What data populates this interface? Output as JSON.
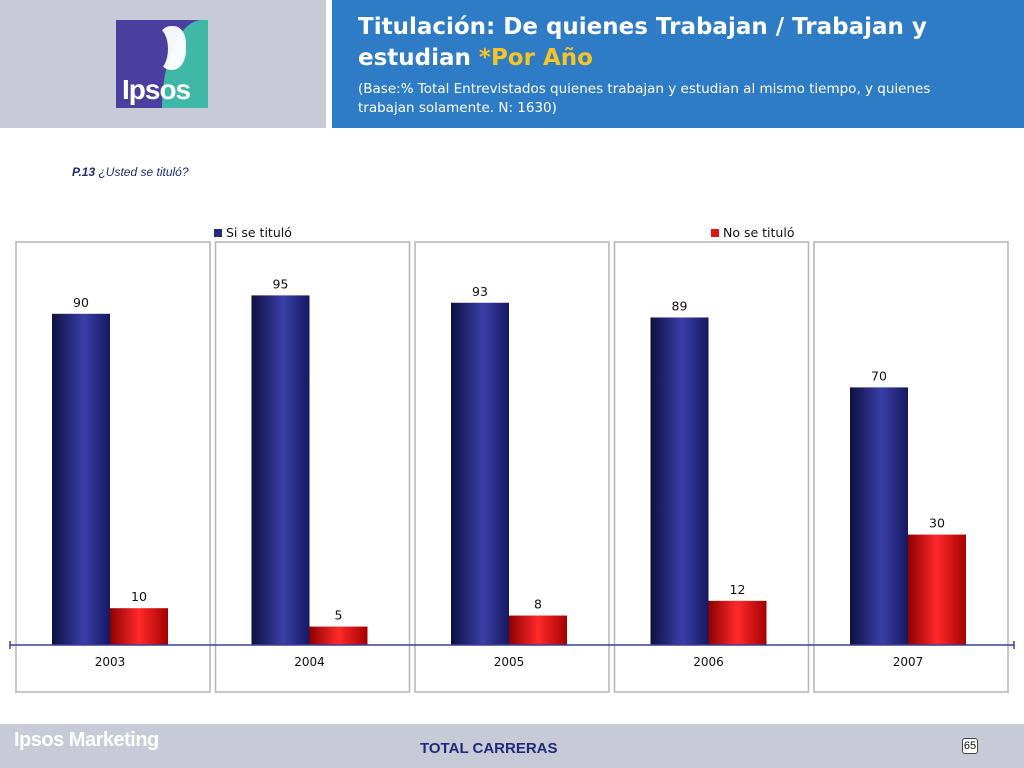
{
  "header": {
    "logo_text": "Ipsos",
    "title_main": "Titulación: De quienes Trabajan / Trabajan y estudian ",
    "title_highlight": "*Por Año",
    "subtitle": "(Base:% Total Entrevistados quienes trabajan y estudian al mismo tiempo, y quienes trabajan solamente. N: 1630)"
  },
  "question": {
    "code": "P.13",
    "text": " ¿Usted se tituló?"
  },
  "chart_data": {
    "type": "bar",
    "categories": [
      "2003",
      "2004",
      "2005",
      "2006",
      "2007"
    ],
    "series": [
      {
        "name": "Si se tituló",
        "color": "#262a7e",
        "values": [
          90,
          95,
          93,
          89,
          70
        ]
      },
      {
        "name": "No se tituló",
        "color": "#e01515",
        "values": [
          10,
          5,
          8,
          12,
          30
        ]
      }
    ],
    "ylim": [
      0,
      100
    ],
    "data_labels": true,
    "legend_position": "top",
    "grid": false
  },
  "footer": {
    "brand": "Ipsos Marketing",
    "center_text": "TOTAL CARRERAS",
    "page_number": "65"
  }
}
